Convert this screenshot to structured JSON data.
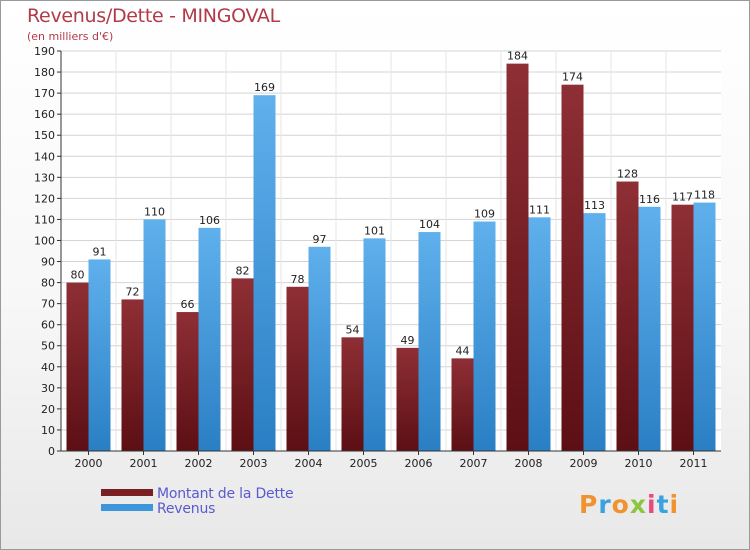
{
  "header": {
    "title": "Revenus/Dette - MINGOVAL",
    "subtitle": "(en milliers d'€)"
  },
  "legend": {
    "items": [
      {
        "label": "Montant de la Dette",
        "color": "#7a1f24"
      },
      {
        "label": "Revenus",
        "color": "#3d95dc"
      }
    ]
  },
  "logo": {
    "text": "Proxiti",
    "colors": [
      "#f0932e",
      "#3aa3df",
      "#f0932e",
      "#8cc63f",
      "#e84a7f",
      "#3aa3df",
      "#f0932e"
    ]
  },
  "chart_data": {
    "type": "bar",
    "categories": [
      "2000",
      "2001",
      "2002",
      "2003",
      "2004",
      "2005",
      "2006",
      "2007",
      "2008",
      "2009",
      "2010",
      "2011"
    ],
    "series": [
      {
        "name": "Montant de la Dette",
        "color": "#7a1f24",
        "values": [
          80,
          72,
          66,
          82,
          78,
          54,
          49,
          44,
          184,
          174,
          128,
          117
        ]
      },
      {
        "name": "Revenus",
        "color": "#3d95dc",
        "values": [
          91,
          110,
          106,
          169,
          97,
          101,
          104,
          109,
          111,
          113,
          116,
          118
        ]
      }
    ],
    "ylim": [
      0,
      190
    ],
    "ytick_step": 10,
    "grid": true,
    "legend_position": "bottom-left"
  }
}
